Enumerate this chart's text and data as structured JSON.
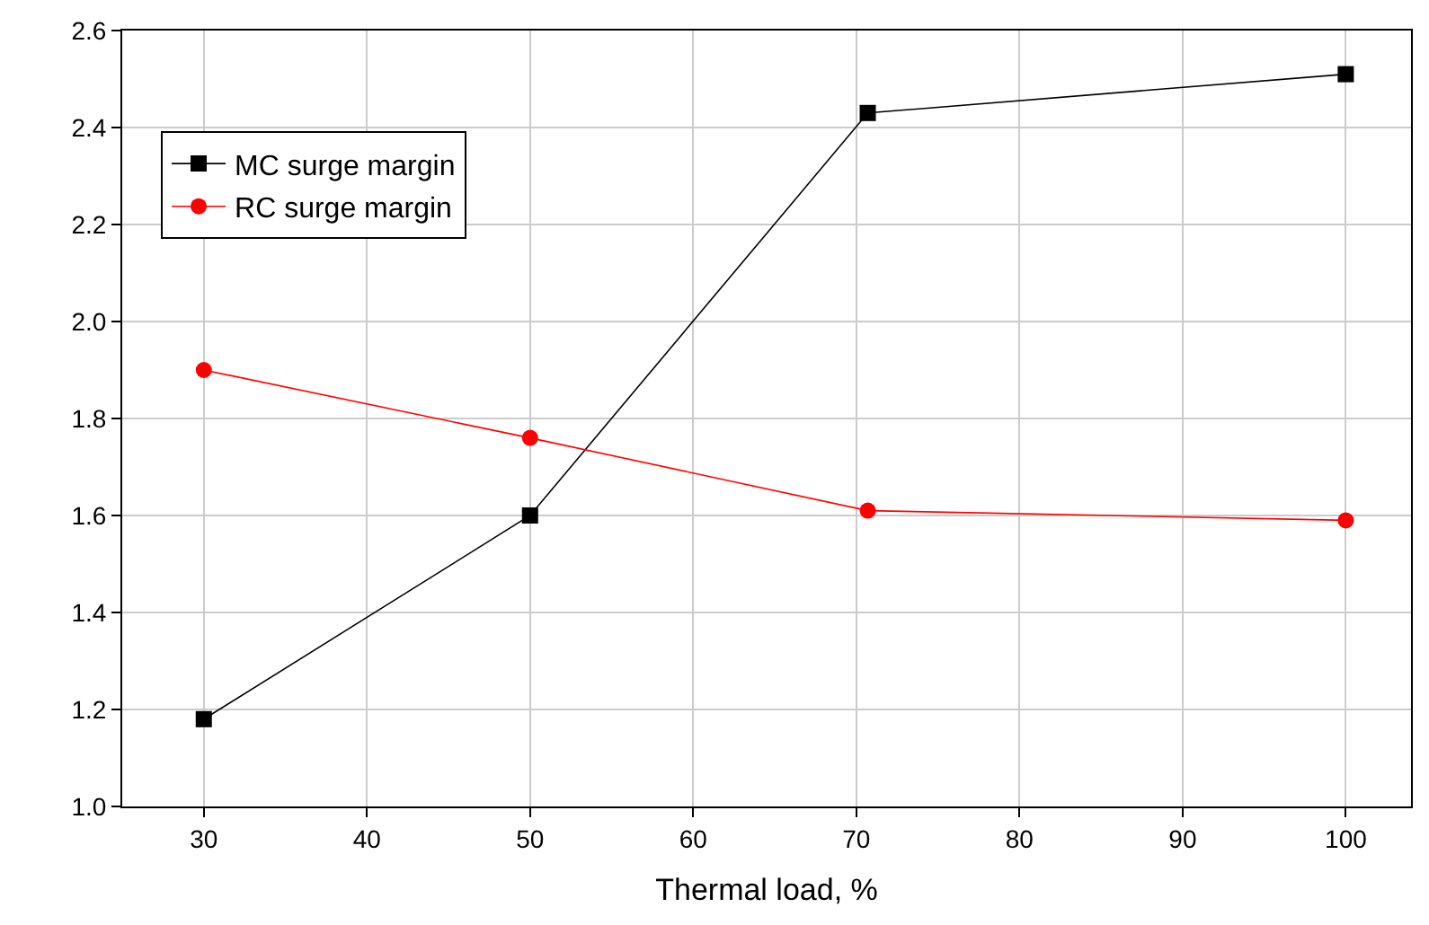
{
  "chart_data": {
    "type": "line",
    "xlabel": "Thermal load, %",
    "x": [
      30,
      50,
      70.7,
      100
    ],
    "series": [
      {
        "name": "MC surge margin",
        "color": "#000000",
        "marker": "square",
        "values": [
          1.18,
          1.6,
          2.43,
          2.51
        ]
      },
      {
        "name": "RC surge margin",
        "color": "#ff0000",
        "marker": "circle",
        "values": [
          1.9,
          1.76,
          1.61,
          1.59
        ]
      }
    ],
    "xlim": [
      25,
      104
    ],
    "xticks": [
      30,
      40,
      50,
      60,
      70,
      80,
      90,
      100
    ],
    "ylim": [
      1.0,
      2.6
    ],
    "yticks": [
      {
        "value": 1.0,
        "label": "1.0"
      },
      {
        "value": 1.2,
        "label": "1.2"
      },
      {
        "value": 1.4,
        "label": "1.4"
      },
      {
        "value": 1.6,
        "label": "1.6"
      },
      {
        "value": 1.8,
        "label": "1.8"
      },
      {
        "value": 2.0,
        "label": "2.0"
      },
      {
        "value": 2.2,
        "label": "2.2"
      },
      {
        "value": 2.4,
        "label": "2.4"
      },
      {
        "value": 2.6,
        "label": "2.6"
      }
    ],
    "grid": true,
    "legend": "top left",
    "line_style": "solid"
  }
}
